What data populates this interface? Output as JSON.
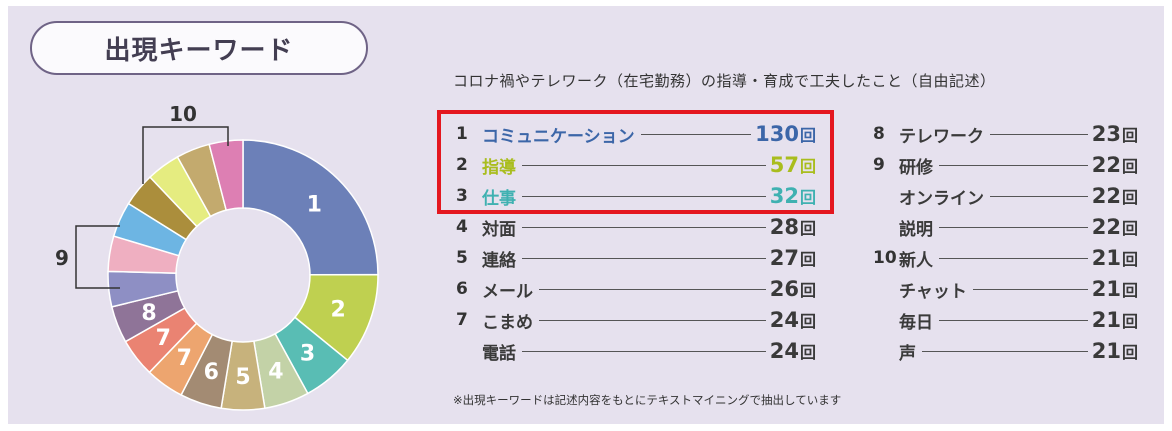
{
  "header": {
    "title": "出現キーワード",
    "subtitle": "コロナ禍やテレワーク（在宅勤務）の指導・育成で工夫したこと（自由記述）"
  },
  "footnote": "※出現キーワードは記述内容をもとにテキストマイニングで抽出しています",
  "chart_data": {
    "type": "pie",
    "unit": "回",
    "segments": [
      {
        "rank": "1",
        "label": "コミュニケーション",
        "value": 130,
        "color": "#6c80b8"
      },
      {
        "rank": "2",
        "label": "指導",
        "value": 57,
        "color": "#bfd050"
      },
      {
        "rank": "3",
        "label": "仕事",
        "value": 32,
        "color": "#59bdb4"
      },
      {
        "rank": "4",
        "label": "対面",
        "value": 28,
        "color": "#c3d2a7"
      },
      {
        "rank": "5",
        "label": "連絡",
        "value": 27,
        "color": "#c7b27c"
      },
      {
        "rank": "6",
        "label": "メール",
        "value": 26,
        "color": "#a38b73"
      },
      {
        "rank": "7",
        "label": "こまめ",
        "value": 24,
        "color": "#eda56f"
      },
      {
        "rank": "7",
        "label": "電話",
        "value": 24,
        "color": "#ea8372"
      },
      {
        "rank": "8",
        "label": "テレワーク",
        "value": 23,
        "color": "#8f7498"
      },
      {
        "rank": "9",
        "label": "研修",
        "value": 22,
        "color": "#8e8fc4"
      },
      {
        "rank": "9",
        "label": "オンライン",
        "value": 22,
        "color": "#efafc1"
      },
      {
        "rank": "9",
        "label": "説明",
        "value": 22,
        "color": "#6db5e3"
      },
      {
        "rank": "10",
        "label": "新人",
        "value": 21,
        "color": "#ab8e3c"
      },
      {
        "rank": "10",
        "label": "チャット",
        "value": 21,
        "color": "#e5ec80"
      },
      {
        "rank": "10",
        "label": "毎日",
        "value": 21,
        "color": "#c3aa6e"
      },
      {
        "rank": "10",
        "label": "声",
        "value": 21,
        "color": "#dd7fb3"
      }
    ],
    "slice_labels": [
      "1",
      "2",
      "3",
      "4",
      "5",
      "6",
      "7",
      "7",
      "8",
      "",
      "",
      "",
      "",
      "",
      "",
      ""
    ],
    "group_labels": [
      "9",
      "10"
    ],
    "list_left": [
      {
        "rank": "1",
        "label": "コミュニケーション",
        "count": "130",
        "color": "#3c66a8"
      },
      {
        "rank": "2",
        "label": "指導",
        "count": "57",
        "color": "#a9bd1e"
      },
      {
        "rank": "3",
        "label": "仕事",
        "count": "32",
        "color": "#3fb1b1"
      },
      {
        "rank": "4",
        "label": "対面",
        "count": "28"
      },
      {
        "rank": "5",
        "label": "連絡",
        "count": "27"
      },
      {
        "rank": "6",
        "label": "メール",
        "count": "26"
      },
      {
        "rank": "7",
        "label": "こまめ",
        "count": "24"
      },
      {
        "rank": "",
        "label": "電話",
        "count": "24"
      }
    ],
    "list_right": [
      {
        "rank": "8",
        "label": "テレワーク",
        "count": "23"
      },
      {
        "rank": "9",
        "label": "研修",
        "count": "22"
      },
      {
        "rank": "",
        "label": "オンライン",
        "count": "22"
      },
      {
        "rank": "",
        "label": "説明",
        "count": "22"
      },
      {
        "rank": "10",
        "label": "新人",
        "count": "21"
      },
      {
        "rank": "",
        "label": "チャット",
        "count": "21"
      },
      {
        "rank": "",
        "label": "毎日",
        "count": "21"
      },
      {
        "rank": "",
        "label": "声",
        "count": "21"
      }
    ]
  }
}
